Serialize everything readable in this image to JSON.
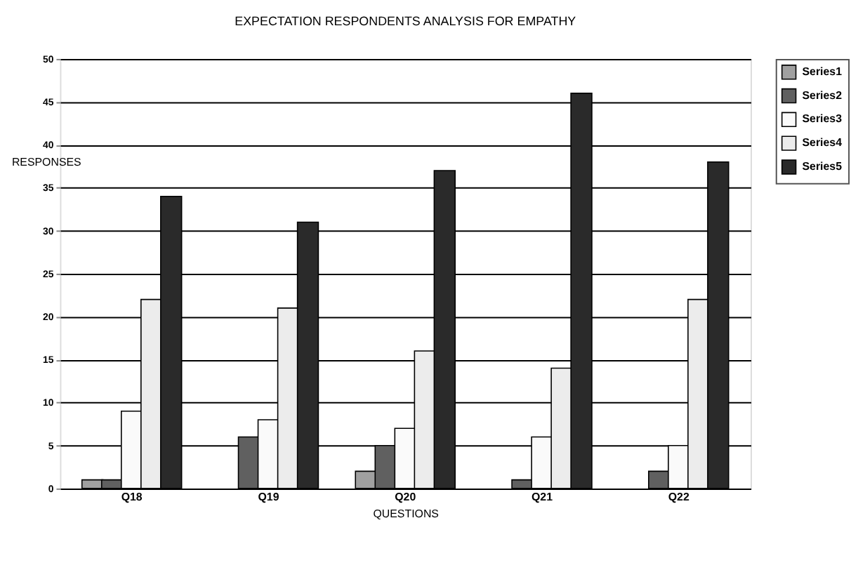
{
  "chart_data": {
    "type": "bar",
    "title": "EXPECTATION RESPONDENTS ANALYSIS FOR EMPATHY",
    "xlabel": "QUESTIONS",
    "ylabel": "RESPONSES",
    "categories": [
      "Q18",
      "Q19",
      "Q20",
      "Q21",
      "Q22"
    ],
    "series": [
      {
        "name": "Series1",
        "color": "#a0a0a0",
        "values": [
          1,
          0,
          2,
          0,
          0
        ]
      },
      {
        "name": "Series2",
        "color": "#606060",
        "values": [
          1,
          6,
          5,
          1,
          2
        ]
      },
      {
        "name": "Series3",
        "color": "#fafafa",
        "values": [
          9,
          8,
          7,
          6,
          5
        ]
      },
      {
        "name": "Series4",
        "color": "#ececec",
        "values": [
          22,
          21,
          16,
          14,
          22
        ]
      },
      {
        "name": "Series5",
        "color": "#2a2a2a",
        "values": [
          34,
          31,
          37,
          46,
          38
        ]
      }
    ],
    "ylim": [
      0,
      50
    ],
    "yticks": [
      0,
      5,
      10,
      15,
      20,
      25,
      30,
      35,
      40,
      45,
      50
    ],
    "grid": "y",
    "legend": "right"
  }
}
